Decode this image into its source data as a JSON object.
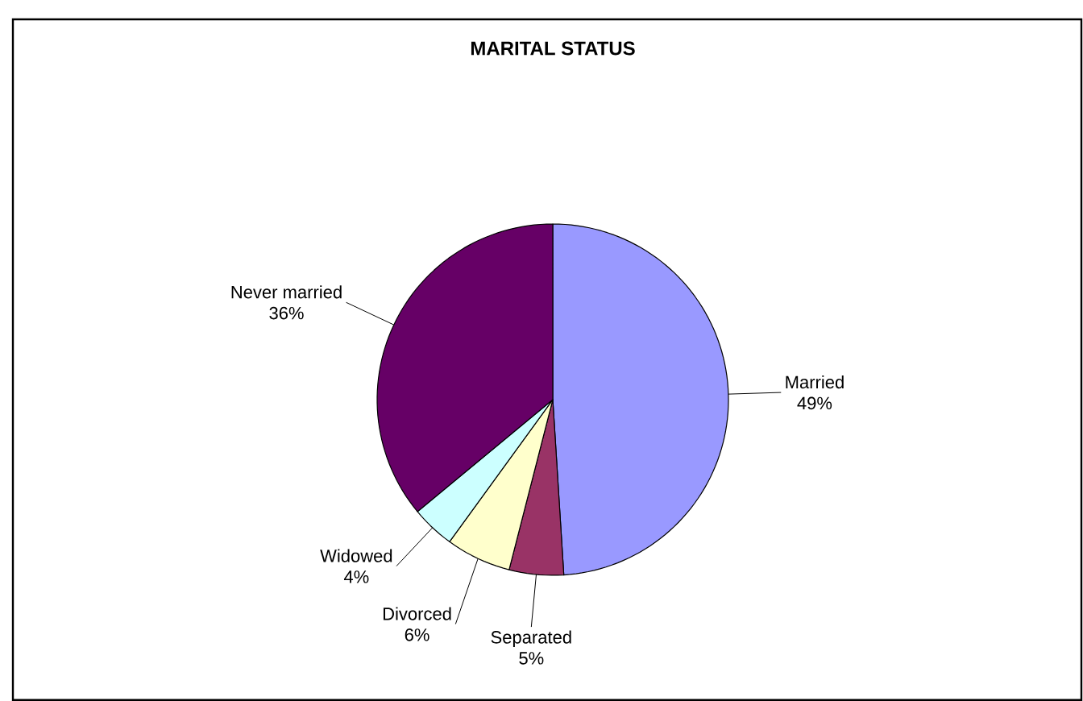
{
  "chart_data": {
    "type": "pie",
    "title": "MARITAL STATUS",
    "categories": [
      "Married",
      "Separated",
      "Divorced",
      "Widowed",
      "Never married"
    ],
    "values": [
      49,
      5,
      6,
      4,
      36
    ],
    "value_labels": [
      "49%",
      "5%",
      "6%",
      "4%",
      "36%"
    ],
    "colors": [
      "#9999ff",
      "#993366",
      "#ffffcc",
      "#ccffff",
      "#660066"
    ]
  }
}
